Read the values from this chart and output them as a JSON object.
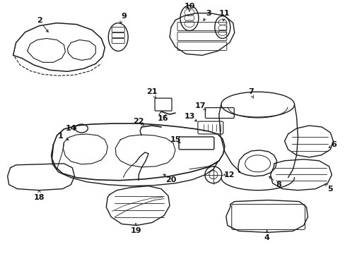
{
  "bg_color": "#ffffff",
  "line_color": "#1a1a1a",
  "text_color": "#111111",
  "fig_width": 4.89,
  "fig_height": 3.6,
  "dpi": 100
}
